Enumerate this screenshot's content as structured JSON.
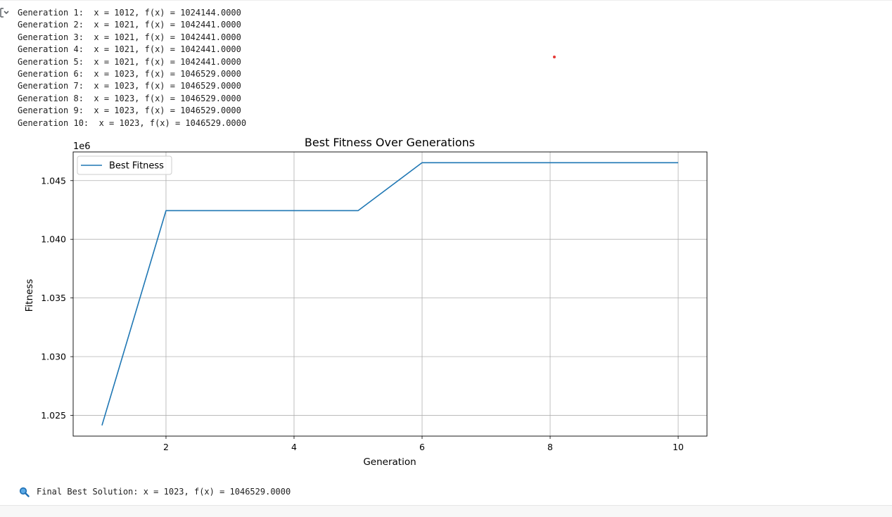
{
  "output": {
    "lines": [
      "Generation 1:  x = 1012, f(x) = 1024144.0000",
      "Generation 2:  x = 1021, f(x) = 1042441.0000",
      "Generation 3:  x = 1021, f(x) = 1042441.0000",
      "Generation 4:  x = 1021, f(x) = 1042441.0000",
      "Generation 5:  x = 1021, f(x) = 1042441.0000",
      "Generation 6:  x = 1023, f(x) = 1046529.0000",
      "Generation 7:  x = 1023, f(x) = 1046529.0000",
      "Generation 8:  x = 1023, f(x) = 1046529.0000",
      "Generation 9:  x = 1023, f(x) = 1046529.0000",
      "Generation 10:  x = 1023, f(x) = 1046529.0000"
    ],
    "final_text": "Final Best Solution: x = 1023, f(x) = 1046529.0000",
    "final_icon": "magnifier-icon",
    "toggle_icon": "output-toggle-icon"
  },
  "chart_data": {
    "type": "line",
    "title": "Best Fitness Over Generations",
    "xlabel": "Generation",
    "ylabel": "Fitness",
    "y_offset_label": "1e6",
    "x": [
      1,
      2,
      3,
      4,
      5,
      6,
      7,
      8,
      9,
      10
    ],
    "series": [
      {
        "name": "Best Fitness",
        "color": "#1f77b4",
        "values": [
          1024144,
          1042441,
          1042441,
          1042441,
          1042441,
          1046529,
          1046529,
          1046529,
          1046529,
          1046529
        ]
      }
    ],
    "xlim": [
      0.55,
      10.45
    ],
    "ylim": [
      1023229,
      1047444
    ],
    "xticks": [
      2,
      4,
      6,
      8,
      10
    ],
    "xtick_labels": [
      "2",
      "4",
      "6",
      "8",
      "10"
    ],
    "yticks": [
      1025000,
      1030000,
      1035000,
      1040000,
      1045000
    ],
    "ytick_labels": [
      "1.025",
      "1.030",
      "1.035",
      "1.040",
      "1.045"
    ],
    "grid": true,
    "legend_position": "upper-left"
  }
}
